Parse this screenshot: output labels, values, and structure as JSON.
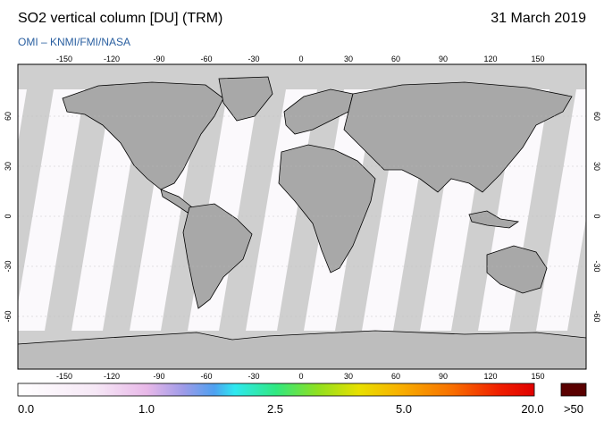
{
  "header": {
    "title": "SO2 vertical column [DU] (TRM)",
    "date": "31 March 2019",
    "credit": "OMI  –  KNMI/FMI/NASA"
  },
  "axes": {
    "lon_ticks": [
      "-150",
      "-120",
      "-90",
      "-60",
      "-30",
      "0",
      "30",
      "60",
      "90",
      "120",
      "150"
    ],
    "lat_ticks_left": [
      "60",
      "30",
      "0",
      "-30",
      "-60"
    ],
    "lat_ticks_right": [
      "60",
      "30",
      "0",
      "-30",
      "-60"
    ]
  },
  "colorbar": {
    "labels": [
      "0.0",
      "1.0",
      "2.5",
      "5.0",
      "20.0"
    ],
    "overflow_label": ">50",
    "overflow_color": "#5a0000"
  },
  "colors": {
    "land_no_data": "#a8a8a8",
    "ocean_no_data": "#cfcfcf",
    "valid_bg": "#fbf9fc",
    "antarctica": "#bdbdbd"
  }
}
